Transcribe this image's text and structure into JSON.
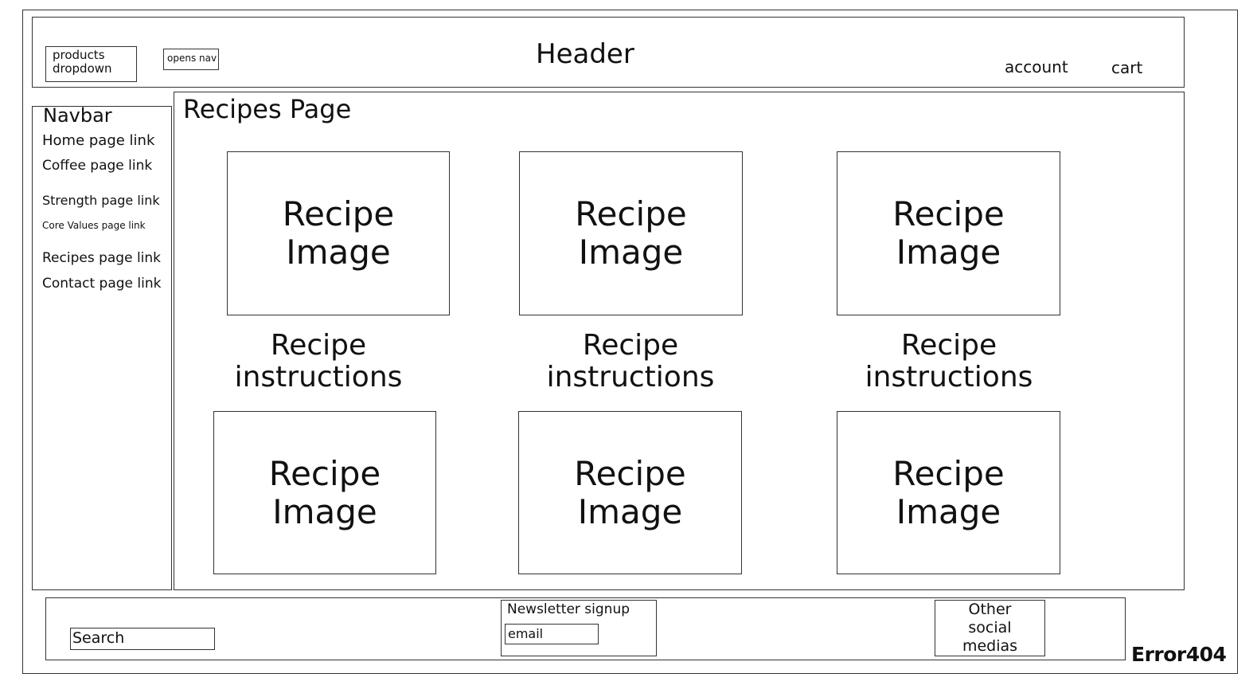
{
  "header": {
    "products_dropdown": "products dropdown",
    "opens_nav": "opens nav",
    "title": "Header",
    "account": "account",
    "cart": "cart"
  },
  "navbar": {
    "title": "Navbar",
    "links": [
      "Home page link",
      "Coffee page link",
      "Strength page link",
      "Core Values page link",
      "Recipes page link",
      "Contact page link"
    ]
  },
  "main": {
    "title": "Recipes Page",
    "recipe_image_label": "Recipe Image",
    "recipe_instructions_label": "Recipe instructions"
  },
  "footer": {
    "search_placeholder": "Search",
    "newsletter_label": "Newsletter signup",
    "email_placeholder": "email",
    "social_label": "Other social medias",
    "brand": "Error404"
  }
}
